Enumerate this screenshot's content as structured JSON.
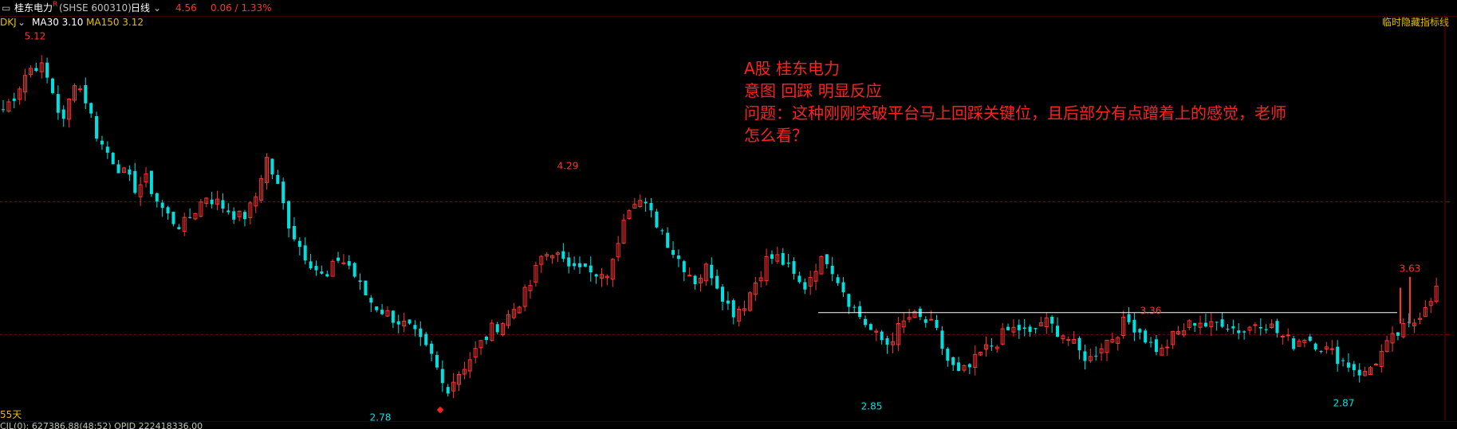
{
  "header": {
    "menu_icon": "menu-icon",
    "stock_name": "桂东电力",
    "superscript": "R",
    "code": "(SHSE 600310)",
    "period": "日线",
    "price": "4.56",
    "change": "0.06 / 1.33%",
    "indicator_name": "DKJ",
    "ma30": "MA30 3.10",
    "ma150": "MA150 3.12",
    "hide_indicator": "临时隐藏指标线"
  },
  "annotation": {
    "line1": "A股 桂东电力",
    "line2": "意图 回踩 明显反应",
    "line3": "问题：这种刚刚突破平台马上回踩关键位，且后部分有点蹭着上的感觉，老师",
    "line4": "怎么看？"
  },
  "footer": {
    "days": "55天",
    "stats": "CIL(0):  627386.88(48:52)  OPID 222418336.00"
  },
  "colors": {
    "up": "#ff3232",
    "down": "#00e0e0",
    "ma": "#ffffff",
    "background": "#000000",
    "annotation": "#ff2020"
  },
  "chart_data": {
    "type": "candlestick",
    "ylim": [
      2.7,
      5.2
    ],
    "reference_levels": [
      4.11,
      3.26
    ],
    "platform_line": 3.4,
    "labeled_points": [
      {
        "label": "5.12",
        "value": 5.12,
        "kind": "high"
      },
      {
        "label": "4.29",
        "value": 4.29,
        "kind": "high"
      },
      {
        "label": "2.78",
        "value": 2.78,
        "kind": "low"
      },
      {
        "label": "2.85",
        "value": 2.85,
        "kind": "low"
      },
      {
        "label": "3.36",
        "value": 3.36,
        "kind": "high"
      },
      {
        "label": "2.87",
        "value": 2.87,
        "kind": "low"
      },
      {
        "label": "3.63",
        "value": 3.63,
        "kind": "high"
      }
    ],
    "close_path": [
      4.7,
      4.8,
      4.95,
      5.0,
      4.85,
      4.6,
      4.9,
      4.75,
      4.5,
      4.4,
      4.3,
      4.2,
      4.25,
      4.1,
      4.0,
      3.95,
      4.05,
      4.15,
      4.1,
      4.05,
      4.0,
      4.1,
      4.4,
      4.2,
      3.95,
      3.8,
      3.7,
      3.6,
      3.75,
      3.7,
      3.55,
      3.45,
      3.4,
      3.35,
      3.3,
      3.2,
      3.1,
      2.9,
      3.0,
      3.1,
      3.2,
      3.3,
      3.35,
      3.45,
      3.55,
      3.75,
      3.8,
      3.7,
      3.75,
      3.65,
      3.6,
      3.7,
      4.05,
      4.15,
      4.05,
      3.95,
      3.8,
      3.7,
      3.6,
      3.7,
      3.55,
      3.4,
      3.45,
      3.6,
      3.75,
      3.75,
      3.65,
      3.55,
      3.7,
      3.75,
      3.6,
      3.45,
      3.35,
      3.25,
      3.2,
      3.3,
      3.38,
      3.35,
      3.3,
      3.1,
      3.0,
      3.05,
      3.15,
      3.2,
      3.28,
      3.3,
      3.25,
      3.35,
      3.3,
      3.25,
      3.15,
      3.1,
      3.2,
      3.25,
      3.35,
      3.3,
      3.2,
      3.15,
      3.25,
      3.3,
      3.36,
      3.3,
      3.35,
      3.3,
      3.28,
      3.35,
      3.32,
      3.25,
      3.2,
      3.25,
      3.2,
      3.15,
      3.1,
      3.05,
      3.0,
      3.1,
      3.2,
      3.28,
      3.32,
      3.45,
      3.55
    ]
  }
}
